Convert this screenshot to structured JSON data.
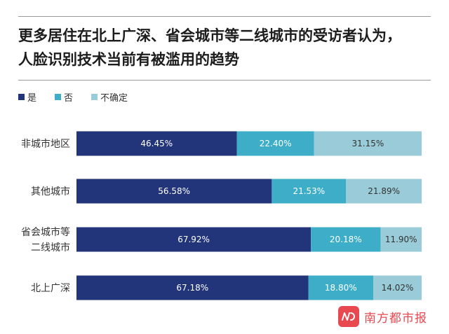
{
  "chart_data": {
    "type": "bar",
    "orientation": "horizontal",
    "stacked": true,
    "title": "更多居住在北上广深、省会城市等二线城市的受访者认为，人脸识别技术当前有被滥用的趋势",
    "title_lines": [
      "更多居住在北上广深、省会城市等二线城市的受访者认为，",
      "人脸识别技术当前有被滥用的趋势"
    ],
    "categories": [
      {
        "lines": [
          "非城市地区"
        ]
      },
      {
        "lines": [
          "其他城市"
        ]
      },
      {
        "lines": [
          "省会城市等",
          "二线城市"
        ]
      },
      {
        "lines": [
          "北上广深"
        ]
      }
    ],
    "series": [
      {
        "name": "是",
        "color": "#23357a",
        "values": [
          46.45,
          56.58,
          67.92,
          67.18
        ],
        "labels": [
          "46.45%",
          "56.58%",
          "67.92%",
          "67.18%"
        ]
      },
      {
        "name": "否",
        "color": "#3eaec8",
        "values": [
          22.4,
          21.53,
          20.18,
          18.8
        ],
        "labels": [
          "22.40%",
          "21.53%",
          "20.18%",
          "18.80%"
        ]
      },
      {
        "name": "不确定",
        "color": "#99ccd8",
        "values": [
          31.15,
          21.89,
          11.9,
          14.02
        ],
        "labels": [
          "31.15%",
          "21.89%",
          "11.90%",
          "14.02%"
        ]
      }
    ],
    "xlim": [
      0,
      100
    ],
    "grid": false,
    "legend_position": "top-left"
  },
  "brand": {
    "name": "南方都市报",
    "logo_mark": "N/D",
    "color": "#e8484f"
  }
}
